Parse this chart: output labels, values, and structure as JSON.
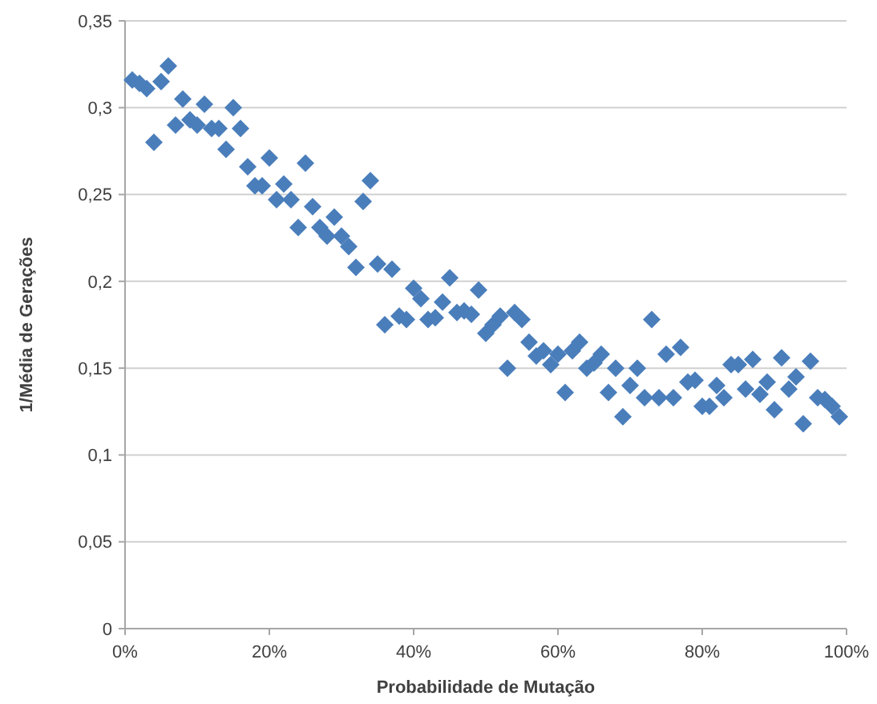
{
  "chart_data": {
    "type": "scatter",
    "xlabel": "Probabilidade de Mutação",
    "ylabel": "1/Média de Gerações",
    "x": [
      1,
      2,
      3,
      4,
      5,
      6,
      7,
      8,
      9,
      10,
      11,
      12,
      13,
      14,
      15,
      16,
      17,
      18,
      19,
      20,
      21,
      22,
      23,
      24,
      25,
      26,
      27,
      28,
      29,
      30,
      31,
      32,
      33,
      34,
      35,
      36,
      37,
      38,
      39,
      40,
      41,
      42,
      43,
      44,
      45,
      46,
      47,
      48,
      49,
      50,
      51,
      52,
      53,
      54,
      55,
      56,
      57,
      58,
      59,
      60,
      61,
      62,
      63,
      64,
      65,
      66,
      67,
      68,
      69,
      70,
      71,
      72,
      73,
      74,
      75,
      76,
      77,
      78,
      79,
      80,
      81,
      82,
      83,
      84,
      85,
      86,
      87,
      88,
      89,
      90,
      91,
      92,
      93,
      94,
      95,
      96,
      97,
      98,
      99
    ],
    "series": [
      {
        "color": "#4a7ebb",
        "values": [
          0.316,
          0.314,
          0.311,
          0.28,
          0.315,
          0.324,
          0.29,
          0.305,
          0.293,
          0.29,
          0.302,
          0.288,
          0.288,
          0.276,
          0.3,
          0.288,
          0.266,
          0.255,
          0.255,
          0.271,
          0.247,
          0.256,
          0.247,
          0.231,
          0.268,
          0.243,
          0.231,
          0.226,
          0.237,
          0.226,
          0.22,
          0.208,
          0.246,
          0.258,
          0.21,
          0.175,
          0.207,
          0.18,
          0.178,
          0.196,
          0.19,
          0.178,
          0.179,
          0.188,
          0.202,
          0.182,
          0.183,
          0.181,
          0.195,
          0.17,
          0.175,
          0.18,
          0.15,
          0.182,
          0.178,
          0.165,
          0.157,
          0.16,
          0.152,
          0.158,
          0.136,
          0.16,
          0.165,
          0.15,
          0.153,
          0.158,
          0.136,
          0.15,
          0.122,
          0.14,
          0.15,
          0.133,
          0.178,
          0.133,
          0.158,
          0.133,
          0.162,
          0.142,
          0.143,
          0.128,
          0.128,
          0.14,
          0.133,
          0.152,
          0.152,
          0.138,
          0.155,
          0.135,
          0.142,
          0.126,
          0.156,
          0.138,
          0.145,
          0.118,
          0.154,
          0.133,
          0.132,
          0.128,
          0.122
        ]
      }
    ],
    "xlim": [
      0,
      100
    ],
    "xticks": [
      {
        "value": 0,
        "label": "0%"
      },
      {
        "value": 20,
        "label": "20%"
      },
      {
        "value": 40,
        "label": "40%"
      },
      {
        "value": 60,
        "label": "60%"
      },
      {
        "value": 80,
        "label": "80%"
      },
      {
        "value": 100,
        "label": "100%"
      }
    ],
    "ylim": [
      0,
      0.35
    ],
    "yticks": [
      {
        "value": 0,
        "label": "0"
      },
      {
        "value": 0.05,
        "label": "0,05"
      },
      {
        "value": 0.1,
        "label": "0,1"
      },
      {
        "value": 0.15,
        "label": "0,15"
      },
      {
        "value": 0.2,
        "label": "0,2"
      },
      {
        "value": 0.25,
        "label": "0,25"
      },
      {
        "value": 0.3,
        "label": "0,3"
      },
      {
        "value": 0.35,
        "label": "0,35"
      }
    ],
    "grid": "y",
    "marker": "diamond"
  }
}
